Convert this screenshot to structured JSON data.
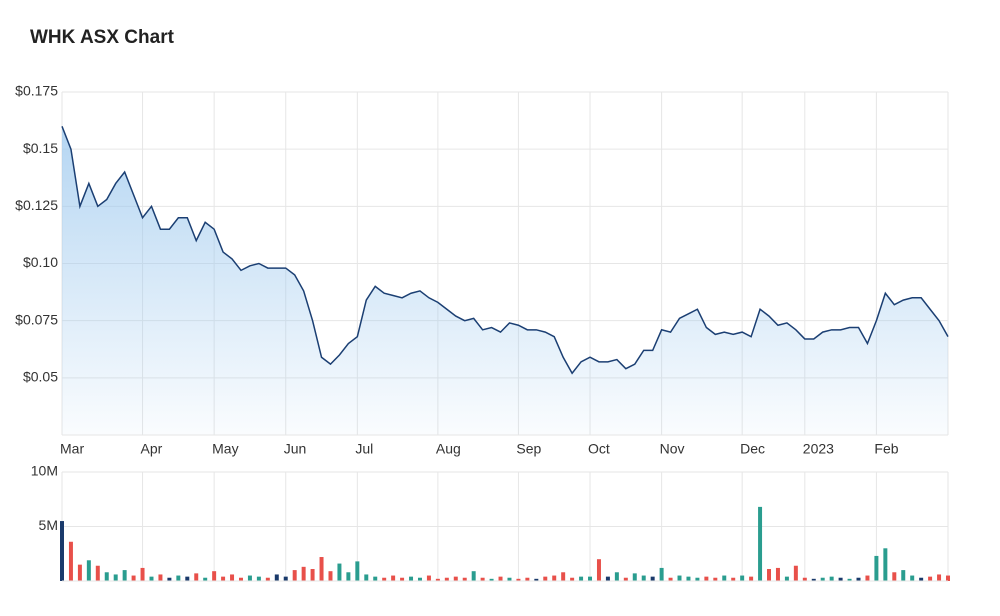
{
  "chart_data": [
    {
      "type": "line",
      "title": "WHK ASX Chart",
      "categories": [
        "Mar",
        null,
        null,
        null,
        null,
        null,
        null,
        null,
        null,
        "Apr",
        null,
        null,
        null,
        null,
        null,
        null,
        null,
        "May",
        null,
        null,
        null,
        null,
        null,
        null,
        null,
        "Jun",
        null,
        null,
        null,
        null,
        null,
        null,
        null,
        "Jul",
        null,
        null,
        null,
        null,
        null,
        null,
        null,
        null,
        "Aug",
        null,
        null,
        null,
        null,
        null,
        null,
        null,
        null,
        "Sep",
        null,
        null,
        null,
        null,
        null,
        null,
        null,
        "Oct",
        null,
        null,
        null,
        null,
        null,
        null,
        null,
        "Nov",
        null,
        null,
        null,
        null,
        null,
        null,
        null,
        null,
        "Dec",
        null,
        null,
        null,
        null,
        null,
        null,
        "2023",
        null,
        null,
        null,
        null,
        null,
        null,
        null,
        "Feb",
        null,
        null,
        null,
        null,
        null,
        null,
        null,
        null
      ],
      "values": [
        0.16,
        0.15,
        0.125,
        0.135,
        0.125,
        0.128,
        0.135,
        0.14,
        0.13,
        0.12,
        0.125,
        0.115,
        0.115,
        0.12,
        0.12,
        0.11,
        0.118,
        0.115,
        0.105,
        0.102,
        0.097,
        0.099,
        0.1,
        0.098,
        0.098,
        0.098,
        0.095,
        0.088,
        0.075,
        0.059,
        0.056,
        0.06,
        0.065,
        0.068,
        0.084,
        0.09,
        0.087,
        0.086,
        0.085,
        0.087,
        0.088,
        0.085,
        0.083,
        0.08,
        0.077,
        0.075,
        0.076,
        0.071,
        0.072,
        0.07,
        0.074,
        0.073,
        0.071,
        0.071,
        0.07,
        0.068,
        0.059,
        0.052,
        0.057,
        0.059,
        0.057,
        0.057,
        0.058,
        0.054,
        0.056,
        0.062,
        0.062,
        0.071,
        0.07,
        0.076,
        0.078,
        0.08,
        0.072,
        0.069,
        0.07,
        0.069,
        0.07,
        0.068,
        0.08,
        0.077,
        0.073,
        0.074,
        0.071,
        0.067,
        0.067,
        0.07,
        0.071,
        0.071,
        0.072,
        0.072,
        0.065,
        0.075,
        0.087,
        0.082,
        0.084,
        0.085,
        0.085,
        0.08,
        0.075,
        0.068
      ],
      "color": "#1b3f73",
      "fill_color": "#9cc8ee",
      "ylim": [
        0.025,
        0.175
      ],
      "yticks": [
        {
          "value": 0.05,
          "label": "$0.05"
        },
        {
          "value": 0.075,
          "label": "$0.075"
        },
        {
          "value": 0.1,
          "label": "$0.10"
        },
        {
          "value": 0.125,
          "label": "$0.125"
        },
        {
          "value": 0.15,
          "label": "$0.15"
        },
        {
          "value": 0.175,
          "label": "$0.175"
        }
      ],
      "grid": true
    },
    {
      "type": "bar",
      "values": [
        5500000,
        3600000,
        1500000,
        1900000,
        1400000,
        800000,
        600000,
        1000000,
        500000,
        1200000,
        400000,
        600000,
        300000,
        500000,
        400000,
        700000,
        300000,
        900000,
        400000,
        600000,
        300000,
        500000,
        400000,
        300000,
        600000,
        400000,
        1000000,
        1300000,
        1100000,
        2200000,
        900000,
        1600000,
        800000,
        1800000,
        600000,
        400000,
        300000,
        500000,
        300000,
        400000,
        300000,
        500000,
        200000,
        300000,
        400000,
        300000,
        900000,
        300000,
        200000,
        400000,
        300000,
        200000,
        300000,
        200000,
        400000,
        500000,
        800000,
        300000,
        400000,
        400000,
        2000000,
        400000,
        800000,
        300000,
        700000,
        500000,
        400000,
        1200000,
        300000,
        500000,
        400000,
        300000,
        400000,
        300000,
        500000,
        300000,
        500000,
        400000,
        6800000,
        1100000,
        1200000,
        400000,
        1400000,
        300000,
        200000,
        300000,
        400000,
        300000,
        200000,
        300000,
        500000,
        2300000,
        3000000,
        800000,
        1000000,
        500000,
        300000,
        400000,
        600000,
        500000
      ],
      "up_color": "#2a9d8f",
      "down_color": "#e8504a",
      "flat_color": "#1a3a6b",
      "ylim": [
        0,
        10000000
      ],
      "yticks": [
        {
          "value": 5000000,
          "label": "5M"
        },
        {
          "value": 10000000,
          "label": "10M"
        }
      ],
      "grid": true
    }
  ]
}
